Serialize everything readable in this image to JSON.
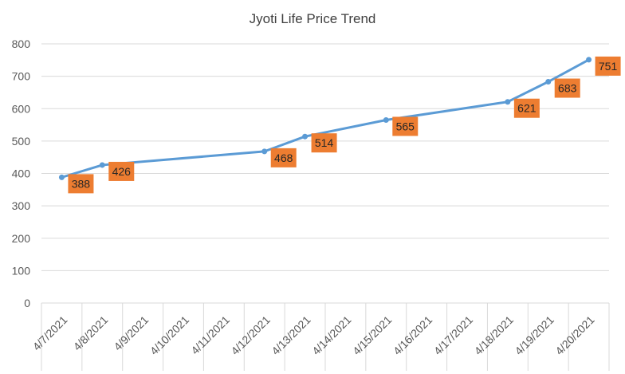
{
  "chart_data": {
    "type": "line",
    "title": "Jyoti Life Price Trend",
    "xlabel": "",
    "ylabel": "",
    "ylim": [
      0,
      800
    ],
    "yticks": [
      0,
      100,
      200,
      300,
      400,
      500,
      600,
      700,
      800
    ],
    "x_categories": [
      "4/7/2021",
      "4/8/2021",
      "4/9/2021",
      "4/10/2021",
      "4/11/2021",
      "4/12/2021",
      "4/13/2021",
      "4/14/2021",
      "4/15/2021",
      "4/16/2021",
      "4/17/2021",
      "4/18/2021",
      "4/19/2021",
      "4/20/2021"
    ],
    "points": [
      {
        "x": "4/7/2021",
        "y": 388
      },
      {
        "x": "4/8/2021",
        "y": 426
      },
      {
        "x": "4/12/2021",
        "y": 468
      },
      {
        "x": "4/13/2021",
        "y": 514
      },
      {
        "x": "4/15/2021",
        "y": 565
      },
      {
        "x": "4/18/2021",
        "y": 621
      },
      {
        "x": "4/19/2021",
        "y": 683
      },
      {
        "x": "4/20/2021",
        "y": 751
      }
    ],
    "line_color": "#5b9bd5",
    "label_bg_color": "#ed7d31",
    "grid": true,
    "legend": "none"
  }
}
